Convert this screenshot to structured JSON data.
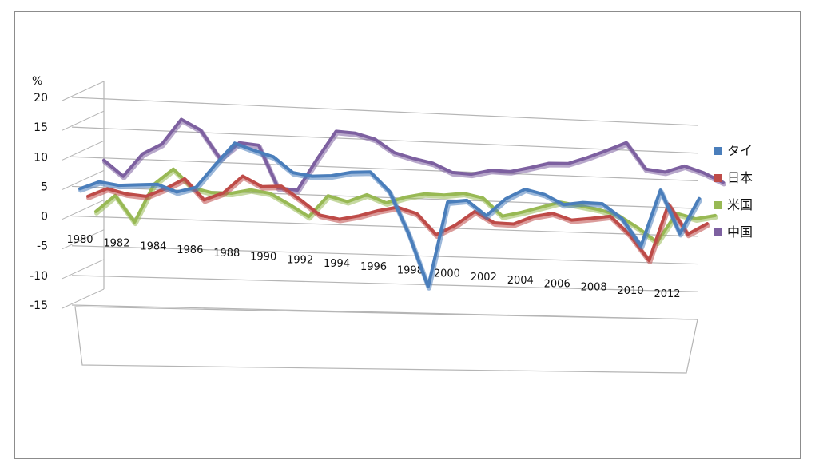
{
  "chart_data": {
    "type": "line",
    "style": "3d-ribbon",
    "unit_label": "%",
    "x": [
      1980,
      1981,
      1982,
      1983,
      1984,
      1985,
      1986,
      1987,
      1988,
      1989,
      1990,
      1991,
      1992,
      1993,
      1994,
      1995,
      1996,
      1997,
      1998,
      1999,
      2000,
      2001,
      2002,
      2003,
      2004,
      2005,
      2006,
      2007,
      2008,
      2009,
      2010,
      2011,
      2012
    ],
    "x_tick_labels": [
      "1980",
      "1982",
      "1984",
      "1986",
      "1988",
      "1990",
      "1992",
      "1994",
      "1996",
      "1998",
      "2000",
      "2002",
      "2004",
      "2006",
      "2008",
      "2010",
      "2012"
    ],
    "y_tick_labels": [
      "20",
      "15",
      "10",
      "5",
      "0",
      "-5",
      "-10",
      "-15"
    ],
    "ylim": [
      -15,
      20
    ],
    "grid": true,
    "legend_position": "right",
    "series": [
      {
        "name": "タイ",
        "color": "#4a7ebb",
        "values": [
          4.6,
          5.9,
          5.4,
          5.6,
          5.8,
          4.6,
          5.5,
          9.5,
          13.3,
          12.2,
          11.2,
          8.6,
          8.1,
          8.3,
          9.0,
          9.2,
          5.9,
          -1.4,
          -10.5,
          4.4,
          4.8,
          2.2,
          5.3,
          7.1,
          6.3,
          4.6,
          5.1,
          5.0,
          2.5,
          -2.3,
          7.8,
          0.1,
          6.5
        ]
      },
      {
        "name": "日本",
        "color": "#be4b48",
        "values": [
          2.8,
          4.2,
          3.4,
          3.1,
          4.5,
          6.3,
          2.8,
          4.1,
          7.1,
          5.4,
          5.6,
          3.3,
          0.8,
          0.2,
          0.9,
          1.9,
          2.6,
          1.6,
          -2.0,
          -0.2,
          2.3,
          0.4,
          0.3,
          1.7,
          2.4,
          1.3,
          1.7,
          2.2,
          -1.0,
          -5.5,
          4.7,
          -0.6,
          1.4
        ]
      },
      {
        "name": "米国",
        "color": "#98b954",
        "values": [
          -0.3,
          2.5,
          -1.9,
          4.6,
          7.3,
          4.2,
          3.5,
          3.5,
          4.2,
          3.7,
          1.9,
          -0.1,
          3.6,
          2.7,
          4.0,
          2.7,
          3.8,
          4.5,
          4.4,
          4.8,
          4.1,
          1.0,
          1.8,
          2.8,
          3.8,
          3.3,
          2.7,
          1.8,
          -0.3,
          -2.8,
          2.5,
          1.6,
          2.3
        ]
      },
      {
        "name": "中国",
        "color": "#7d60a0",
        "values": [
          7.8,
          5.2,
          9.1,
          10.9,
          15.2,
          13.5,
          8.8,
          11.6,
          11.3,
          4.1,
          3.8,
          9.2,
          14.2,
          14.0,
          13.1,
          10.9,
          10.0,
          9.3,
          7.8,
          7.6,
          8.4,
          8.3,
          9.1,
          10.0,
          10.1,
          11.3,
          12.7,
          14.2,
          9.6,
          9.2,
          10.4,
          9.3,
          7.7
        ]
      }
    ]
  }
}
